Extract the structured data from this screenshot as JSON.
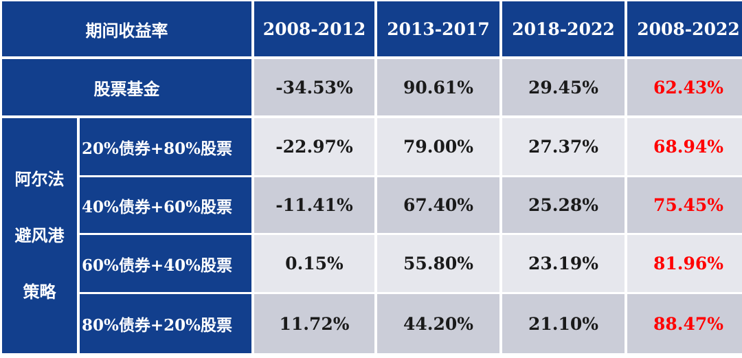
{
  "chart_data": {
    "type": "table",
    "header": {
      "title": "期间收益率",
      "periods": [
        "2008-2012",
        "2013-2017",
        "2018-2022",
        "2008-2022"
      ]
    },
    "fund_row": {
      "label": "股票基金",
      "values": [
        "-34.53%",
        "90.61%",
        "29.45%",
        "62.43%"
      ]
    },
    "strategy": {
      "label_lines": [
        "阿尔法",
        "避风港",
        "策略"
      ],
      "rows": [
        {
          "label": "20%债券+80%股票",
          "values": [
            "-22.97%",
            "79.00%",
            "27.37%",
            "68.94%"
          ]
        },
        {
          "label": "40%债券+60%股票",
          "values": [
            "-11.41%",
            "67.40%",
            "25.28%",
            "75.45%"
          ]
        },
        {
          "label": "60%债券+40%股票",
          "values": [
            "0.15%",
            "55.80%",
            "23.19%",
            "81.96%"
          ]
        },
        {
          "label": "80%债券+20%股票",
          "values": [
            "11.72%",
            "44.20%",
            "21.10%",
            "88.47%"
          ]
        }
      ]
    }
  },
  "colors": {
    "header_bg": "#123f8d",
    "header_text": "#ffffff",
    "cell_dark": "#cbcdd8",
    "cell_light": "#e6e7ed",
    "highlight": "#ff0000"
  }
}
